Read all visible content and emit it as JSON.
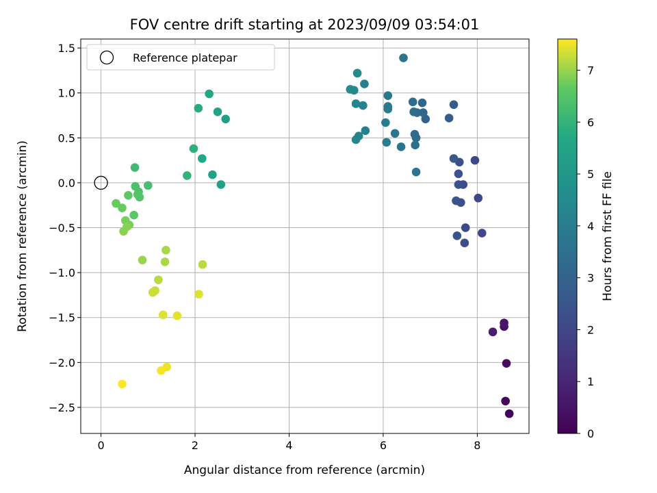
{
  "chart_data": {
    "type": "scatter",
    "title": "FOV centre drift starting at 2023/09/09 03:54:01",
    "xlabel": "Angular distance from reference (arcmin)",
    "ylabel": "Rotation from reference (arcmin)",
    "xlim": [
      -0.43,
      9.1
    ],
    "ylim": [
      -2.79,
      1.6
    ],
    "xticks": [
      0,
      2,
      4,
      6,
      8
    ],
    "yticks": [
      -2.5,
      -2.0,
      -1.5,
      -1.0,
      -0.5,
      0.0,
      0.5,
      1.0,
      1.5
    ],
    "grid": true,
    "legend": {
      "location": "upper-left",
      "label": "Reference platepar"
    },
    "reference_point": {
      "x": 0,
      "y": 0
    },
    "colorbar": {
      "label": "Hours from first FF file",
      "colormap": "viridis",
      "range": [
        0,
        7.6
      ],
      "ticks": [
        0,
        1,
        2,
        3,
        4,
        5,
        6,
        7
      ]
    },
    "points": [
      [
        8.68,
        -2.57,
        0.1
      ],
      [
        8.6,
        -2.43,
        0.2
      ],
      [
        8.62,
        -2.01,
        0.3
      ],
      [
        8.57,
        -1.6,
        0.5
      ],
      [
        8.57,
        -1.56,
        0.6
      ],
      [
        8.33,
        -1.66,
        0.8
      ],
      [
        8.1,
        -0.56,
        2.0
      ],
      [
        8.02,
        -0.17,
        2.0
      ],
      [
        7.95,
        0.25,
        2.1
      ],
      [
        7.75,
        -0.5,
        2.1
      ],
      [
        7.73,
        -0.67,
        2.2
      ],
      [
        7.7,
        -0.02,
        2.2
      ],
      [
        7.65,
        -0.22,
        2.3
      ],
      [
        7.62,
        0.23,
        2.3
      ],
      [
        7.6,
        -0.02,
        2.4
      ],
      [
        7.6,
        0.1,
        2.4
      ],
      [
        7.55,
        -0.2,
        2.5
      ],
      [
        7.57,
        -0.59,
        2.5
      ],
      [
        7.5,
        0.27,
        2.6
      ],
      [
        7.5,
        0.87,
        2.7
      ],
      [
        7.4,
        0.72,
        2.8
      ],
      [
        6.9,
        0.71,
        3.0
      ],
      [
        6.85,
        0.78,
        3.1
      ],
      [
        6.83,
        0.89,
        3.1
      ],
      [
        6.72,
        0.78,
        3.2
      ],
      [
        6.7,
        0.5,
        3.3
      ],
      [
        6.67,
        0.54,
        3.3
      ],
      [
        6.65,
        0.79,
        3.4
      ],
      [
        6.63,
        0.9,
        3.4
      ],
      [
        6.68,
        0.42,
        3.5
      ],
      [
        6.7,
        0.12,
        3.6
      ],
      [
        6.43,
        1.39,
        3.6
      ],
      [
        6.38,
        0.4,
        3.7
      ],
      [
        6.25,
        0.55,
        3.7
      ],
      [
        6.1,
        0.97,
        3.8
      ],
      [
        6.1,
        0.85,
        3.9
      ],
      [
        6.1,
        0.82,
        3.9
      ],
      [
        6.07,
        0.45,
        4.0
      ],
      [
        6.05,
        0.67,
        4.0
      ],
      [
        5.62,
        0.58,
        4.1
      ],
      [
        5.6,
        1.1,
        4.1
      ],
      [
        5.57,
        0.86,
        4.2
      ],
      [
        5.48,
        0.52,
        4.2
      ],
      [
        5.42,
        0.48,
        4.3
      ],
      [
        5.42,
        0.88,
        4.3
      ],
      [
        5.45,
        1.22,
        4.4
      ],
      [
        5.38,
        1.03,
        4.4
      ],
      [
        5.3,
        1.04,
        4.5
      ],
      [
        2.65,
        0.71,
        5.3
      ],
      [
        2.55,
        -0.02,
        5.4
      ],
      [
        2.48,
        0.79,
        5.5
      ],
      [
        2.37,
        0.09,
        5.5
      ],
      [
        2.3,
        0.99,
        5.6
      ],
      [
        2.15,
        0.27,
        5.7
      ],
      [
        2.07,
        0.83,
        5.8
      ],
      [
        1.97,
        0.38,
        5.9
      ],
      [
        1.83,
        0.08,
        6.0
      ],
      [
        0.72,
        0.17,
        6.2
      ],
      [
        1.0,
        -0.03,
        6.3
      ],
      [
        0.73,
        -0.04,
        6.4
      ],
      [
        0.8,
        -0.1,
        6.4
      ],
      [
        0.78,
        -0.13,
        6.5
      ],
      [
        0.82,
        -0.16,
        6.5
      ],
      [
        0.58,
        -0.14,
        6.6
      ],
      [
        0.7,
        -0.36,
        6.6
      ],
      [
        0.32,
        -0.23,
        6.7
      ],
      [
        0.45,
        -0.28,
        6.7
      ],
      [
        0.52,
        -0.42,
        6.8
      ],
      [
        0.6,
        -0.47,
        6.8
      ],
      [
        0.55,
        -0.49,
        6.9
      ],
      [
        0.48,
        -0.54,
        6.9
      ],
      [
        0.88,
        -0.86,
        7.0
      ],
      [
        1.38,
        -0.75,
        7.1
      ],
      [
        1.36,
        -0.88,
        7.1
      ],
      [
        2.16,
        -0.91,
        7.2
      ],
      [
        1.22,
        -1.08,
        7.2
      ],
      [
        1.15,
        -1.2,
        7.3
      ],
      [
        1.1,
        -1.22,
        7.3
      ],
      [
        2.08,
        -1.24,
        7.4
      ],
      [
        1.32,
        -1.47,
        7.4
      ],
      [
        1.62,
        -1.48,
        7.45
      ],
      [
        1.4,
        -2.05,
        7.5
      ],
      [
        1.28,
        -2.09,
        7.55
      ],
      [
        0.45,
        -2.24,
        7.6
      ]
    ]
  }
}
